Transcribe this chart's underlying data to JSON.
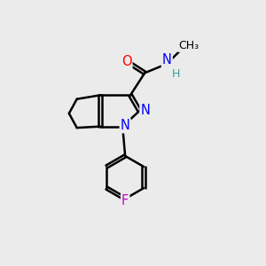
{
  "background_color": "#ebebeb",
  "bond_color": "#000000",
  "atom_colors": {
    "N": "#0000ff",
    "O": "#ff0000",
    "F": "#cc00cc",
    "H": "#3d9999",
    "C": "#000000"
  },
  "figsize": [
    3.0,
    3.0
  ],
  "dpi": 100
}
